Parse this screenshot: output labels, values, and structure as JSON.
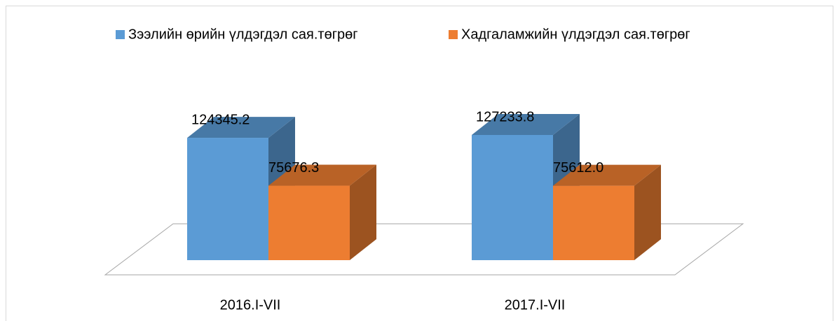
{
  "chart_data": {
    "type": "bar3d",
    "categories": [
      "2016.I-VII",
      "2017.I-VII"
    ],
    "series": [
      {
        "name": "Зээлийн өрийн үлдэгдэл сая.төгрөг",
        "color": "#5b9bd5",
        "values": [
          124345.2,
          127233.8
        ],
        "value_labels": [
          "124345.2",
          "127233.8"
        ]
      },
      {
        "name": "Хадгаламжийн үлдэгдэл сая.төгрөг",
        "color": "#ed7d31",
        "values": [
          75676.3,
          75612.0
        ],
        "value_labels": [
          "75676.3",
          "75612.0"
        ]
      }
    ],
    "legend": "top"
  }
}
